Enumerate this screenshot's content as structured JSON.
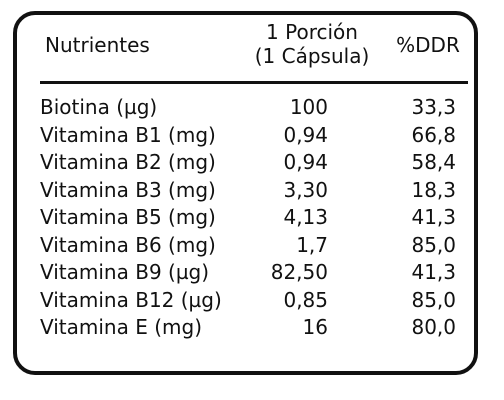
{
  "table": {
    "headers": {
      "nutrient": "Nutrientes",
      "portion_line1": "1 Porción",
      "portion_line2": "(1 Cápsula)",
      "ddr": "%DDR"
    },
    "rows": [
      {
        "name": "Biotina (µg)",
        "portion": "100",
        "ddr": "33,3"
      },
      {
        "name": "Vitamina B1 (mg)",
        "portion": "0,94",
        "ddr": "66,8"
      },
      {
        "name": "Vitamina B2 (mg)",
        "portion": "0,94",
        "ddr": "58,4"
      },
      {
        "name": "Vitamina B3 (mg)",
        "portion": "3,30",
        "ddr": "18,3"
      },
      {
        "name": "Vitamina B5 (mg)",
        "portion": "4,13",
        "ddr": "41,3"
      },
      {
        "name": "Vitamina B6 (mg)",
        "portion": "1,7",
        "ddr": "85,0"
      },
      {
        "name": "Vitamina B9 (µg)",
        "portion": "82,50",
        "ddr": "41,3"
      },
      {
        "name": "Vitamina B12 (µg)",
        "portion": "0,85",
        "ddr": "85,0"
      },
      {
        "name": "Vitamina E (mg)",
        "portion": "16",
        "ddr": "80,0"
      }
    ]
  }
}
